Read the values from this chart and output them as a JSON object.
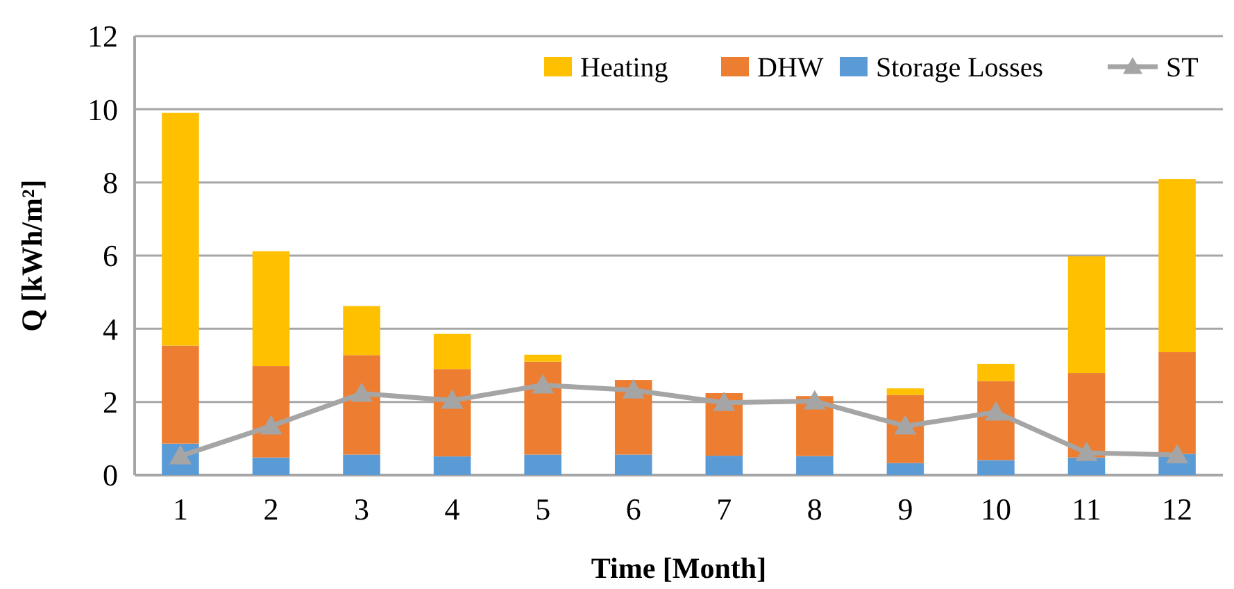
{
  "chart_data": {
    "type": "bar",
    "xlabel": "Time [Month]",
    "ylabel": "Q [kWh/m²]",
    "categories": [
      "1",
      "2",
      "3",
      "4",
      "5",
      "6",
      "7",
      "8",
      "9",
      "10",
      "11",
      "12"
    ],
    "stacked": true,
    "ylim": [
      0,
      12
    ],
    "yticks": [
      0,
      2,
      4,
      6,
      8,
      10,
      12
    ],
    "grid": "y",
    "legend": "top right",
    "marker": "triangle",
    "series": [
      {
        "name": "Storage Losses",
        "color": "#5b9bd5",
        "values": [
          0.86,
          0.48,
          0.56,
          0.51,
          0.56,
          0.56,
          0.53,
          0.52,
          0.33,
          0.41,
          0.48,
          0.58
        ]
      },
      {
        "name": "DHW",
        "color": "#ed7d31",
        "values": [
          2.68,
          2.5,
          2.72,
          2.39,
          2.54,
          2.04,
          1.71,
          1.64,
          1.86,
          2.16,
          2.31,
          2.78
        ]
      },
      {
        "name": "Heating",
        "color": "#ffc000",
        "values": [
          6.36,
          3.14,
          1.34,
          0.96,
          0.19,
          0,
          0,
          0,
          0.18,
          0.47,
          3.19,
          4.73
        ]
      },
      {
        "name": "ST",
        "type": "line",
        "color": "#a5a5a5",
        "values": [
          0.52,
          1.34,
          2.23,
          2.04,
          2.46,
          2.32,
          1.98,
          2.02,
          1.34,
          1.72,
          0.61,
          0.55
        ]
      }
    ]
  }
}
